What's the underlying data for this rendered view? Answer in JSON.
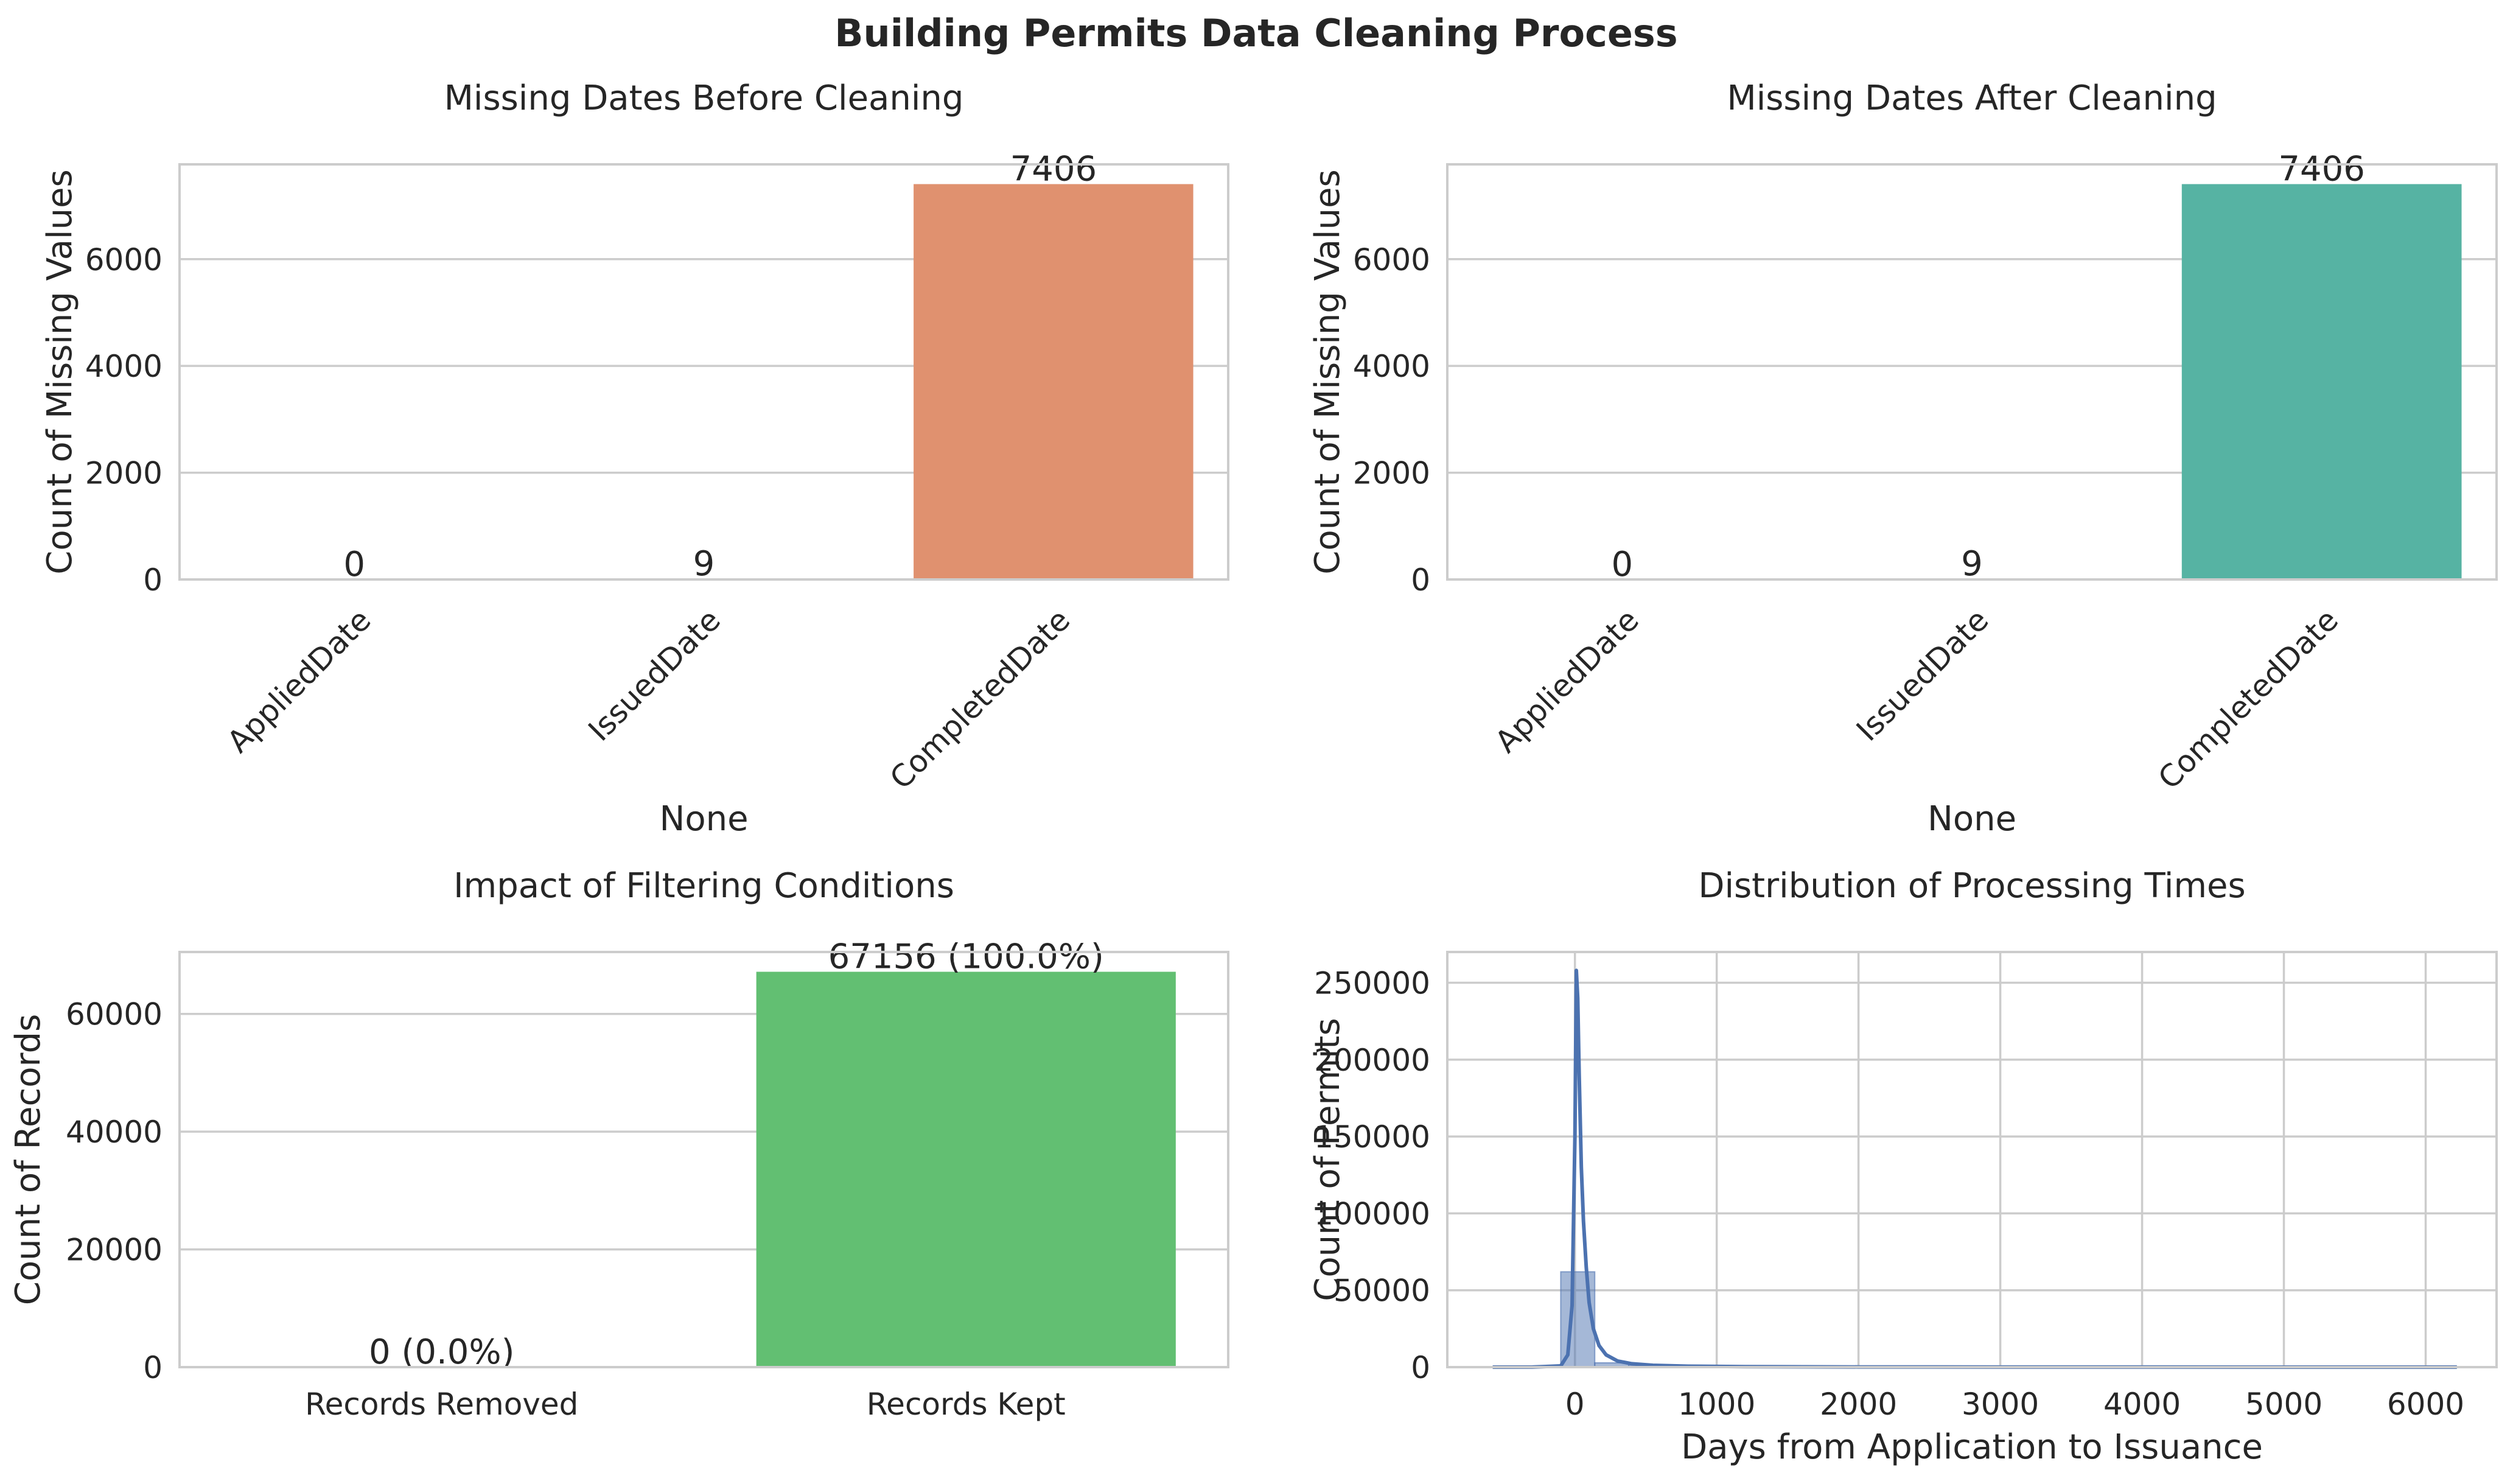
{
  "suptitle": "Building Permits Data Cleaning Process",
  "chart_data": [
    {
      "type": "bar",
      "title": "Missing Dates Before Cleaning",
      "xlabel": "None",
      "ylabel": "Count of Missing Values",
      "categories": [
        "AppliedDate",
        "IssuedDate",
        "CompletedDate"
      ],
      "values": [
        0,
        9,
        7406
      ],
      "data_labels": [
        "0",
        "9",
        "7406"
      ],
      "yticks": [
        0,
        2000,
        4000,
        6000
      ],
      "ytick_labels": [
        "0",
        "2000",
        "4000",
        "6000"
      ],
      "ylim": [
        0,
        7776
      ],
      "xtick_rotation": 45,
      "colors": [
        "#fc8d62",
        "#fc8d62",
        "#e0916f"
      ],
      "grid": "horizontal"
    },
    {
      "type": "bar",
      "title": "Missing Dates After Cleaning",
      "xlabel": "None",
      "ylabel": "Count of Missing Values",
      "categories": [
        "AppliedDate",
        "IssuedDate",
        "CompletedDate"
      ],
      "values": [
        0,
        9,
        7406
      ],
      "data_labels": [
        "0",
        "9",
        "7406"
      ],
      "yticks": [
        0,
        2000,
        4000,
        6000
      ],
      "ytick_labels": [
        "0",
        "2000",
        "4000",
        "6000"
      ],
      "ylim": [
        0,
        7776
      ],
      "xtick_rotation": 45,
      "colors": [
        "#66c2a5",
        "#66c2a5",
        "#56b3a3"
      ],
      "grid": "horizontal"
    },
    {
      "type": "bar",
      "title": "Impact of Filtering Conditions",
      "xlabel": "",
      "ylabel": "Count of Records",
      "categories": [
        "Records Removed",
        "Records Kept"
      ],
      "values": [
        0,
        67156
      ],
      "data_labels": [
        "0 (0.0%)",
        "67156 (100.0%)"
      ],
      "yticks": [
        0,
        20000,
        40000,
        60000
      ],
      "ytick_labels": [
        "0",
        "20000",
        "40000",
        "60000"
      ],
      "ylim": [
        0,
        70514
      ],
      "xtick_rotation": 0,
      "colors": [
        "#ef5350",
        "#62bf72"
      ],
      "grid": "horizontal"
    },
    {
      "type": "histogram",
      "title": "Distribution of Processing Times",
      "xlabel": "Days from Application to Issuance",
      "ylabel": "Count of Permits",
      "xticks": [
        0,
        1000,
        2000,
        3000,
        4000,
        5000,
        6000
      ],
      "xtick_labels": [
        "0",
        "1000",
        "2000",
        "3000",
        "4000",
        "5000",
        "6000"
      ],
      "yticks": [
        0,
        50000,
        100000,
        150000,
        200000,
        250000
      ],
      "ytick_labels": [
        "0",
        "50000",
        "100000",
        "150000",
        "200000",
        "250000"
      ],
      "xlim": [
        -900,
        6500
      ],
      "ylim": [
        0,
        270000
      ],
      "bins": [
        {
          "x0": -580,
          "x1": -340,
          "count": 150
        },
        {
          "x0": -340,
          "x1": -100,
          "count": 350
        },
        {
          "x0": -100,
          "x1": 140,
          "count": 62000
        },
        {
          "x0": 140,
          "x1": 380,
          "count": 2800
        },
        {
          "x0": 380,
          "x1": 620,
          "count": 900
        },
        {
          "x0": 620,
          "x1": 860,
          "count": 400
        },
        {
          "x0": 860,
          "x1": 1100,
          "count": 250
        },
        {
          "x0": 1100,
          "x1": 1340,
          "count": 150
        },
        {
          "x0": 1340,
          "x1": 1580,
          "count": 100
        },
        {
          "x0": 1580,
          "x1": 1820,
          "count": 80
        },
        {
          "x0": 1820,
          "x1": 2060,
          "count": 60
        },
        {
          "x0": 2060,
          "x1": 2300,
          "count": 40
        },
        {
          "x0": 2300,
          "x1": 2540,
          "count": 30
        },
        {
          "x0": 2540,
          "x1": 2780,
          "count": 20
        },
        {
          "x0": 2780,
          "x1": 3020,
          "count": 15
        },
        {
          "x0": 3020,
          "x1": 3260,
          "count": 10
        },
        {
          "x0": 3260,
          "x1": 3500,
          "count": 8
        },
        {
          "x0": 3500,
          "x1": 3740,
          "count": 6
        },
        {
          "x0": 3740,
          "x1": 3980,
          "count": 5
        },
        {
          "x0": 3980,
          "x1": 4220,
          "count": 4
        },
        {
          "x0": 4220,
          "x1": 4460,
          "count": 3
        },
        {
          "x0": 4460,
          "x1": 4700,
          "count": 3
        },
        {
          "x0": 4700,
          "x1": 4940,
          "count": 2
        },
        {
          "x0": 4940,
          "x1": 5180,
          "count": 2
        },
        {
          "x0": 5180,
          "x1": 5420,
          "count": 1
        },
        {
          "x0": 5420,
          "x1": 5660,
          "count": 1
        },
        {
          "x0": 5660,
          "x1": 5900,
          "count": 1
        },
        {
          "x0": 5900,
          "x1": 6220,
          "count": 1
        }
      ],
      "kde": {
        "x": [
          -580,
          -300,
          -100,
          -50,
          -20,
          0,
          10,
          20,
          30,
          45,
          60,
          80,
          100,
          130,
          170,
          220,
          300,
          400,
          550,
          800,
          1200,
          2000,
          3000,
          4000,
          5000,
          6220
        ],
        "y": [
          0,
          50,
          800,
          8000,
          40000,
          150000,
          258000,
          240000,
          190000,
          130000,
          95000,
          65000,
          42000,
          25000,
          14000,
          8000,
          4000,
          2200,
          1200,
          600,
          300,
          120,
          50,
          20,
          8,
          0
        ]
      },
      "color": "#4c72b0",
      "grid": "both"
    }
  ]
}
